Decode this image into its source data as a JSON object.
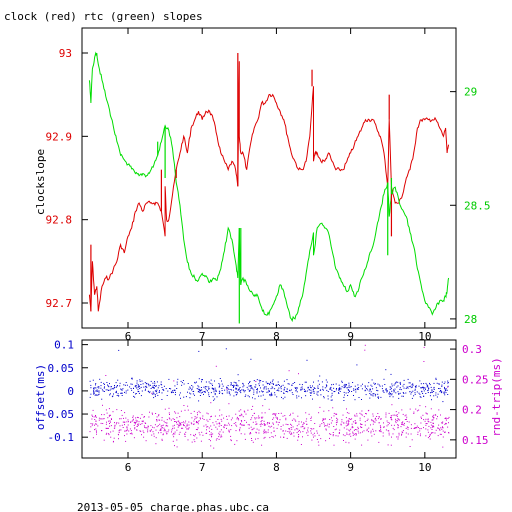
{
  "title": "clock (red) rtc (green) slopes",
  "footer": "2013-05-05 charge.phas.ubc.ca",
  "chart_data": [
    {
      "type": "line",
      "title": "clock (red) rtc (green) slopes",
      "xlabel": "",
      "ylabel": "clockslope",
      "y2label": "",
      "xlim": [
        5.38,
        10.42
      ],
      "ylim": [
        92.67,
        93.03
      ],
      "y2lim": [
        27.96,
        29.28
      ],
      "x_ticks": [
        6,
        7,
        8,
        9,
        10
      ],
      "y_ticks": [
        92.7,
        92.8,
        92.9,
        93
      ],
      "y2_ticks": [
        28,
        28.5,
        29
      ],
      "colors": {
        "clock": "#dd0000",
        "rtc": "#00dd00",
        "axis": "#000000"
      },
      "series": [
        {
          "axis": "left",
          "color": "#dd0000",
          "x": [
            5.48,
            5.5,
            5.52,
            5.55,
            5.58,
            5.6,
            5.65,
            5.7,
            5.75,
            5.8,
            5.85,
            5.9,
            5.95,
            6.0,
            6.05,
            6.1,
            6.15,
            6.2,
            6.25,
            6.3,
            6.35,
            6.4,
            6.45,
            6.5,
            6.5,
            6.52,
            6.55,
            6.6,
            6.65,
            6.7,
            6.75,
            6.8,
            6.85,
            6.9,
            6.95,
            7.0,
            7.05,
            7.1,
            7.15,
            7.2,
            7.25,
            7.3,
            7.35,
            7.4,
            7.45,
            7.48,
            7.5,
            7.5,
            7.52,
            7.55,
            7.6,
            7.65,
            7.7,
            7.75,
            7.8,
            7.85,
            7.9,
            7.95,
            8.0,
            8.05,
            8.1,
            8.15,
            8.2,
            8.25,
            8.3,
            8.35,
            8.4,
            8.45,
            8.5,
            8.5,
            8.52,
            8.55,
            8.6,
            8.65,
            8.7,
            8.75,
            8.8,
            8.85,
            8.9,
            8.95,
            9.0,
            9.05,
            9.1,
            9.15,
            9.2,
            9.25,
            9.3,
            9.35,
            9.4,
            9.45,
            9.5,
            9.52,
            9.55,
            9.6,
            9.65,
            9.7,
            9.75,
            9.8,
            9.85,
            9.9,
            9.95,
            10.0,
            10.05,
            10.1,
            10.15,
            10.2,
            10.25,
            10.28,
            10.3,
            10.32
          ],
          "y": [
            92.71,
            92.69,
            92.75,
            92.71,
            92.72,
            92.69,
            92.72,
            92.73,
            92.73,
            92.74,
            92.75,
            92.77,
            92.76,
            92.78,
            92.79,
            92.81,
            92.82,
            92.81,
            92.82,
            92.82,
            92.82,
            92.82,
            92.81,
            92.78,
            92.84,
            92.8,
            92.8,
            92.83,
            92.86,
            92.88,
            92.9,
            92.88,
            92.91,
            92.92,
            92.93,
            92.92,
            92.93,
            92.93,
            92.92,
            92.9,
            92.88,
            92.87,
            92.86,
            92.87,
            92.86,
            92.84,
            92.99,
            92.9,
            92.88,
            92.88,
            92.86,
            92.89,
            92.91,
            92.92,
            92.94,
            92.94,
            92.95,
            92.95,
            92.94,
            92.93,
            92.92,
            92.9,
            92.88,
            92.87,
            92.86,
            92.86,
            92.87,
            92.9,
            92.96,
            92.87,
            92.88,
            92.88,
            92.87,
            92.87,
            92.88,
            92.87,
            92.86,
            92.86,
            92.86,
            92.87,
            92.88,
            92.89,
            92.9,
            92.91,
            92.92,
            92.92,
            92.92,
            92.91,
            92.9,
            92.88,
            92.84,
            92.92,
            92.84,
            92.82,
            92.82,
            92.83,
            92.85,
            92.86,
            92.88,
            92.91,
            92.92,
            92.92,
            92.92,
            92.92,
            92.92,
            92.91,
            92.9,
            92.91,
            92.88,
            92.89
          ]
        },
        {
          "axis": "right",
          "color": "#00dd00",
          "x": [
            5.48,
            5.5,
            5.52,
            5.55,
            5.58,
            5.6,
            5.65,
            5.7,
            5.75,
            5.8,
            5.85,
            5.9,
            5.95,
            6.0,
            6.05,
            6.1,
            6.15,
            6.2,
            6.25,
            6.3,
            6.35,
            6.4,
            6.45,
            6.5,
            6.55,
            6.6,
            6.65,
            6.7,
            6.75,
            6.8,
            6.85,
            6.9,
            6.95,
            7.0,
            7.05,
            7.1,
            7.15,
            7.2,
            7.25,
            7.3,
            7.35,
            7.4,
            7.45,
            7.48,
            7.5,
            7.52,
            7.55,
            7.6,
            7.65,
            7.7,
            7.75,
            7.8,
            7.85,
            7.9,
            7.95,
            8.0,
            8.05,
            8.1,
            8.15,
            8.2,
            8.25,
            8.3,
            8.35,
            8.4,
            8.45,
            8.5,
            8.5,
            8.55,
            8.6,
            8.65,
            8.7,
            8.75,
            8.8,
            8.85,
            8.9,
            8.95,
            9.0,
            9.05,
            9.1,
            9.15,
            9.2,
            9.25,
            9.3,
            9.35,
            9.4,
            9.45,
            9.5,
            9.52,
            9.55,
            9.6,
            9.65,
            9.7,
            9.75,
            9.8,
            9.85,
            9.9,
            9.95,
            10.0,
            10.05,
            10.1,
            10.15,
            10.2,
            10.25,
            10.28,
            10.3,
            10.32
          ],
          "y": [
            29.05,
            28.95,
            29.1,
            29.15,
            29.17,
            29.12,
            29.05,
            28.98,
            28.92,
            28.85,
            28.78,
            28.72,
            28.7,
            28.68,
            28.66,
            28.64,
            28.63,
            28.64,
            28.63,
            28.65,
            28.68,
            28.72,
            28.78,
            28.85,
            28.83,
            28.75,
            28.6,
            28.5,
            28.35,
            28.25,
            28.2,
            28.18,
            28.17,
            28.2,
            28.19,
            28.16,
            28.18,
            28.17,
            28.22,
            28.3,
            28.4,
            28.35,
            28.25,
            28.18,
            28.4,
            28.15,
            28.18,
            28.15,
            28.12,
            28.1,
            28.1,
            28.05,
            28.02,
            28.02,
            28.06,
            28.1,
            28.15,
            28.12,
            28.05,
            28.0,
            28.0,
            28.05,
            28.1,
            28.2,
            28.3,
            28.38,
            28.28,
            28.4,
            28.42,
            28.4,
            28.38,
            28.3,
            28.22,
            28.18,
            28.15,
            28.12,
            28.15,
            28.1,
            28.12,
            28.18,
            28.22,
            28.28,
            28.32,
            28.4,
            28.48,
            28.55,
            28.6,
            28.45,
            28.55,
            28.58,
            28.52,
            28.48,
            28.45,
            28.38,
            28.32,
            28.22,
            28.15,
            28.08,
            28.05,
            28.02,
            28.05,
            28.08,
            28.08,
            28.1,
            28.12,
            28.18
          ]
        }
      ],
      "spikes_left": [
        {
          "x": 5.5,
          "y": 92.77
        },
        {
          "x": 6.45,
          "y": 92.86
        },
        {
          "x": 6.65,
          "y": 92.85
        },
        {
          "x": 7.48,
          "y": 93.0
        },
        {
          "x": 8.48,
          "y": 92.98
        },
        {
          "x": 9.52,
          "y": 92.95
        },
        {
          "x": 9.55,
          "y": 92.78
        }
      ],
      "spikes_right": [
        {
          "x": 6.4,
          "y": 28.78
        },
        {
          "x": 6.5,
          "y": 28.62
        },
        {
          "x": 7.5,
          "y": 27.98
        },
        {
          "x": 7.52,
          "y": 28.4
        },
        {
          "x": 9.5,
          "y": 28.28
        },
        {
          "x": 9.55,
          "y": 28.62
        }
      ]
    },
    {
      "type": "scatter",
      "xlabel": "",
      "ylabel": "offset(ms)",
      "y2label": "rnd-trip(ms)",
      "xlim": [
        5.38,
        10.42
      ],
      "ylim": [
        -0.145,
        0.11
      ],
      "y2lim": [
        0.12,
        0.315
      ],
      "x_ticks": [
        6,
        7,
        8,
        9,
        10
      ],
      "y_ticks": [
        0.1,
        0.05,
        0,
        -0.05,
        -0.1
      ],
      "y2_ticks": [
        0.3,
        0.25,
        0.2,
        0.15
      ],
      "y_tick_labels": [
        "0.1",
        "0.05",
        "0",
        "-0.05",
        "-0.1"
      ],
      "y2_tick_labels": [
        "0.3",
        "0.25",
        "0.2",
        "0.15"
      ],
      "colors": {
        "offset": "#0000cc",
        "rnd_trip": "#cc00cc",
        "axis": "#000000"
      },
      "series": [
        {
          "axis": "left",
          "color": "#0000cc",
          "x_range": [
            5.48,
            10.32
          ],
          "y_center": 0.005,
          "y_spread": 0.03,
          "points": 900
        },
        {
          "axis": "right",
          "color": "#cc00cc",
          "x_range": [
            5.48,
            10.32
          ],
          "y_center": 0.175,
          "y_spread": 0.04,
          "points": 1100
        }
      ]
    }
  ]
}
